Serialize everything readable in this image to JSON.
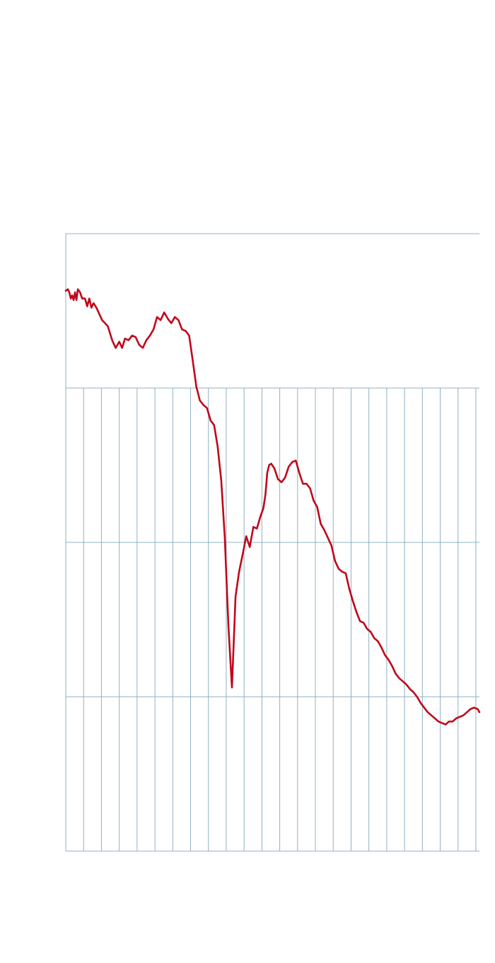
{
  "colors": {
    "background": "#ffffff",
    "grid": "#8fb0c3",
    "series_line": "#c0071b"
  },
  "chart_data": {
    "type": "line",
    "title": "",
    "xlabel": "",
    "ylabel": "",
    "xlim": [
      0,
      23.2
    ],
    "ylim": [
      0,
      4
    ],
    "y_gridlines": [
      0,
      1,
      2,
      3,
      4
    ],
    "x_gridlines": [
      0,
      1,
      2,
      3,
      4,
      5,
      6,
      7,
      8,
      9,
      10,
      11,
      12,
      13,
      14,
      15,
      16,
      17,
      18,
      19,
      20,
      21,
      22,
      23
    ],
    "grid": true,
    "legend": "none",
    "series": [
      {
        "color": "#c0071b",
        "x": [
          0,
          0.12,
          0.2,
          0.28,
          0.36,
          0.44,
          0.52,
          0.6,
          0.68,
          0.8,
          0.92,
          1.08,
          1.2,
          1.32,
          1.44,
          1.56,
          1.72,
          1.88,
          2.04,
          2.2,
          2.36,
          2.6,
          2.8,
          3.0,
          3.16,
          3.32,
          3.52,
          3.72,
          3.92,
          4.12,
          4.32,
          4.52,
          4.72,
          4.92,
          5.12,
          5.32,
          5.52,
          5.72,
          5.92,
          6.12,
          6.32,
          6.52,
          6.72,
          6.92,
          7.12,
          7.32,
          7.52,
          7.72,
          7.92,
          8.12,
          8.32,
          8.52,
          8.72,
          8.92,
          9.12,
          9.32,
          9.52,
          9.72,
          9.92,
          10.12,
          10.32,
          10.52,
          10.72,
          10.92,
          11.08,
          11.2,
          11.3,
          11.4,
          11.52,
          11.7,
          11.9,
          12.1,
          12.3,
          12.5,
          12.7,
          12.9,
          13.1,
          13.3,
          13.5,
          13.7,
          13.9,
          14.1,
          14.3,
          14.5,
          14.7,
          14.9,
          15.1,
          15.3,
          15.5,
          15.7,
          15.9,
          16.1,
          16.3,
          16.5,
          16.7,
          16.9,
          17.1,
          17.3,
          17.5,
          17.7,
          17.9,
          18.1,
          18.3,
          18.5,
          18.7,
          18.9,
          19.1,
          19.3,
          19.5,
          19.7,
          19.9,
          20.1,
          20.3,
          20.5,
          20.7,
          20.9,
          21.1,
          21.3,
          21.5,
          21.7,
          21.9,
          22.1,
          22.3,
          22.5,
          22.7,
          22.9,
          23.1,
          23.2
        ],
        "y": [
          3.63,
          3.64,
          3.62,
          3.58,
          3.6,
          3.57,
          3.62,
          3.57,
          3.64,
          3.62,
          3.58,
          3.58,
          3.53,
          3.58,
          3.52,
          3.55,
          3.52,
          3.48,
          3.44,
          3.42,
          3.4,
          3.31,
          3.26,
          3.3,
          3.26,
          3.32,
          3.31,
          3.34,
          3.33,
          3.28,
          3.26,
          3.31,
          3.34,
          3.38,
          3.46,
          3.44,
          3.49,
          3.45,
          3.42,
          3.46,
          3.44,
          3.38,
          3.37,
          3.34,
          3.18,
          3.01,
          2.92,
          2.89,
          2.87,
          2.79,
          2.76,
          2.62,
          2.4,
          2.03,
          1.46,
          1.06,
          1.65,
          1.81,
          1.92,
          2.04,
          1.97,
          2.1,
          2.09,
          2.17,
          2.22,
          2.31,
          2.45,
          2.5,
          2.51,
          2.48,
          2.41,
          2.39,
          2.42,
          2.49,
          2.52,
          2.53,
          2.45,
          2.38,
          2.38,
          2.35,
          2.27,
          2.23,
          2.12,
          2.08,
          2.03,
          1.98,
          1.88,
          1.83,
          1.81,
          1.8,
          1.7,
          1.62,
          1.55,
          1.49,
          1.48,
          1.44,
          1.42,
          1.38,
          1.36,
          1.32,
          1.27,
          1.24,
          1.2,
          1.15,
          1.12,
          1.1,
          1.08,
          1.05,
          1.03,
          1.0,
          0.96,
          0.93,
          0.9,
          0.88,
          0.86,
          0.84,
          0.83,
          0.82,
          0.84,
          0.84,
          0.86,
          0.87,
          0.88,
          0.9,
          0.92,
          0.93,
          0.92,
          0.9
        ]
      }
    ]
  }
}
